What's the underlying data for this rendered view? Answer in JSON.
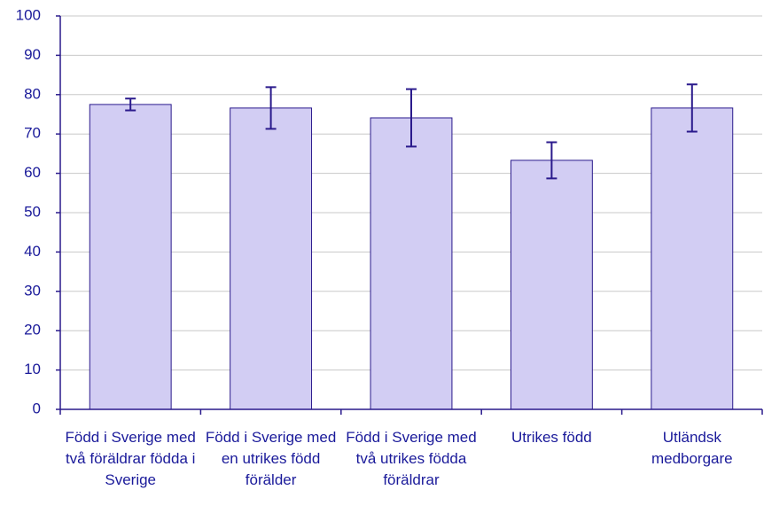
{
  "chart_data": {
    "type": "bar",
    "categories": [
      "Född i Sverige med två föräldrar födda i Sverige",
      "Född i Sverige med en utrikes född förälder",
      "Född i Sverige med två utrikes födda föräldrar",
      "Utrikes född",
      "Utländsk medborgare"
    ],
    "values": [
      77.5,
      76.6,
      74.1,
      63.3,
      76.6
    ],
    "errors": [
      1.5,
      5.3,
      7.3,
      4.6,
      6.0
    ],
    "color": "#d2cdf3",
    "edge_color": "#2a1a8c",
    "text_color": "#1a1a9a",
    "ylim": [
      0,
      100
    ],
    "yticks": [
      0,
      10,
      20,
      30,
      40,
      50,
      60,
      70,
      80,
      90,
      100
    ],
    "grid": true
  }
}
